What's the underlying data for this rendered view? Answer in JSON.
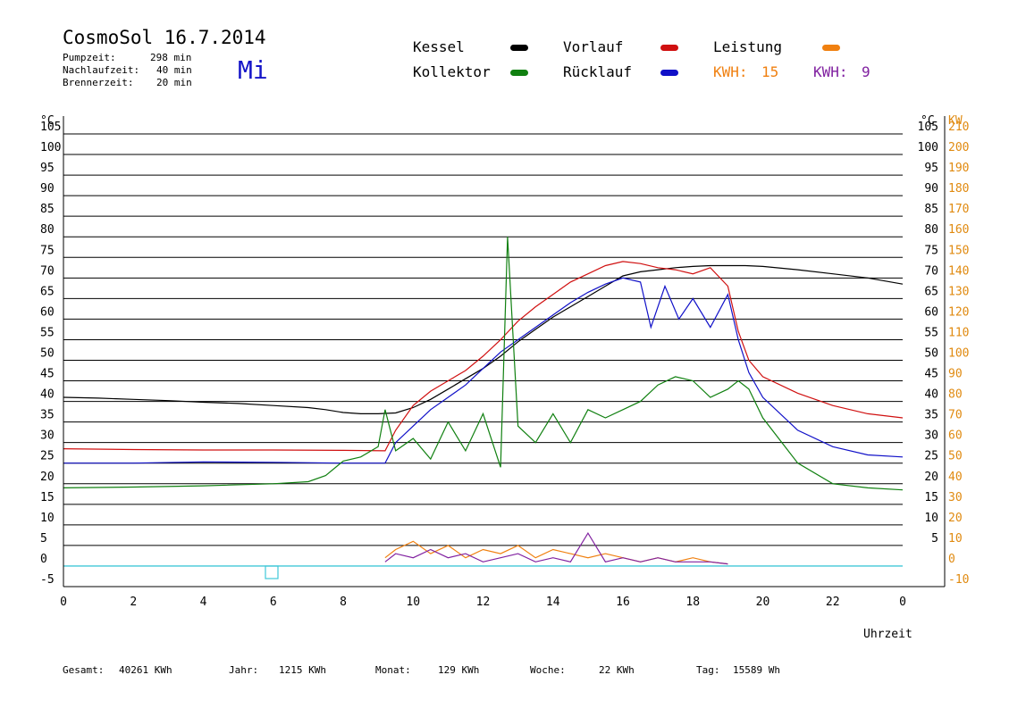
{
  "header": {
    "title": "CosmoSol 16.7.2014",
    "weekday": "Mi",
    "stats": [
      {
        "label": "Pumpzeit:",
        "value": "298 min"
      },
      {
        "label": "Nachlaufzeit:",
        "value": "40 min"
      },
      {
        "label": "Brennerzeit:",
        "value": "20 min"
      }
    ]
  },
  "legend": {
    "kessel": "Kessel",
    "kollektor": "Kollektor",
    "vorlauf": "Vorlauf",
    "ruecklauf": "Rücklauf",
    "leistung": "Leistung",
    "kwh1_label": "KWH:",
    "kwh1_value": "15",
    "kwh2_label": "KWH:",
    "kwh2_value": "9"
  },
  "colors": {
    "kessel": "#000000",
    "vorlauf": "#d01010",
    "ruecklauf": "#1010c8",
    "kollektor": "#108010",
    "leistung": "#f08010",
    "kwh2": "#8020a0",
    "zero_line": "#40c8d8",
    "right_axis": "#e08a10"
  },
  "footer": {
    "gesamt_label": "Gesamt:",
    "gesamt_value": "40261 KWh",
    "jahr_label": "Jahr:",
    "jahr_value": "1215 KWh",
    "monat_label": "Monat:",
    "monat_value": "129 KWh",
    "woche_label": "Woche:",
    "woche_value": "22 KWh",
    "tag_label": "Tag:",
    "tag_value": "15589 Wh"
  },
  "chart_data": {
    "type": "line",
    "xlabel": "Uhrzeit",
    "xlim": [
      0,
      24
    ],
    "x_ticks": [
      "0",
      "2",
      "4",
      "6",
      "8",
      "10",
      "12",
      "14",
      "16",
      "18",
      "20",
      "22",
      "0"
    ],
    "ylabel_left": "°C",
    "ylabel_right_temp": "°C",
    "ylabel_right_power": "KW",
    "ylim": [
      -5,
      105
    ],
    "y_ticks_left": [
      "-5",
      "0",
      "5",
      "10",
      "15",
      "20",
      "25",
      "30",
      "35",
      "40",
      "45",
      "50",
      "55",
      "60",
      "65",
      "70",
      "75",
      "80",
      "85",
      "90",
      "95",
      "100",
      "105"
    ],
    "y_ticks_right": [
      "5",
      "10",
      "15",
      "20",
      "25",
      "30",
      "35",
      "40",
      "45",
      "50",
      "55",
      "60",
      "65",
      "70",
      "75",
      "80",
      "85",
      "90",
      "95",
      "100",
      "105"
    ],
    "y_ticks_power": [
      "-10",
      "0",
      "10",
      "20",
      "30",
      "40",
      "50",
      "60",
      "70",
      "80",
      "90",
      "100",
      "110",
      "120",
      "130",
      "140",
      "150",
      "160",
      "170",
      "180",
      "190",
      "200",
      "210"
    ],
    "grid": true,
    "series": [
      {
        "name": "Kessel",
        "color": "#000000",
        "x": [
          0,
          1,
          2,
          3,
          4,
          5,
          6,
          7,
          7.5,
          8,
          8.5,
          9,
          9.5,
          10,
          10.5,
          11,
          11.5,
          12,
          12.5,
          13,
          13.5,
          14,
          14.5,
          15,
          15.5,
          16,
          16.5,
          17,
          17.5,
          18,
          18.5,
          19,
          19.5,
          20,
          21,
          22,
          23,
          24
        ],
        "y": [
          41,
          40.8,
          40.5,
          40.2,
          39.8,
          39.5,
          39,
          38.5,
          38,
          37.3,
          37,
          37,
          37.2,
          38.5,
          40.5,
          43,
          45.5,
          48,
          51,
          54.5,
          57.5,
          60.5,
          63,
          65.5,
          68,
          70.5,
          71.5,
          72,
          72.5,
          72.8,
          73,
          73,
          73,
          72.8,
          72,
          71,
          70,
          68.5
        ]
      },
      {
        "name": "Vorlauf",
        "color": "#d01010",
        "x": [
          0,
          2,
          4,
          6,
          8,
          9.2,
          9.5,
          10,
          10.5,
          11,
          11.5,
          12,
          12.5,
          13,
          13.5,
          14,
          14.5,
          15,
          15.5,
          16,
          16.5,
          17,
          17.5,
          18,
          18.5,
          19,
          19.3,
          19.6,
          20,
          21,
          22,
          23,
          24
        ],
        "y": [
          28.5,
          28.3,
          28.2,
          28.2,
          28.1,
          28,
          33,
          39,
          42.5,
          45,
          47.5,
          51,
          55,
          59.5,
          63,
          66,
          69,
          71,
          73,
          74,
          73.5,
          72.5,
          72,
          71,
          72.5,
          68,
          57,
          50,
          46,
          42,
          39,
          37,
          36
        ]
      },
      {
        "name": "Rücklauf",
        "color": "#1010c8",
        "x": [
          0,
          2,
          4,
          6,
          8,
          9.2,
          9.5,
          10,
          10.5,
          11,
          11.5,
          12,
          12.5,
          13,
          13.5,
          14,
          14.5,
          15,
          15.5,
          16,
          16.5,
          16.8,
          17.2,
          17.6,
          18,
          18.5,
          19,
          19.3,
          19.6,
          20,
          21,
          22,
          23,
          24
        ],
        "y": [
          25,
          25,
          25.3,
          25.2,
          25,
          25,
          30,
          34,
          38,
          41,
          44,
          48,
          52,
          55,
          58,
          61,
          64,
          66.5,
          68.5,
          70,
          69,
          58,
          68,
          60,
          65,
          58,
          66,
          55,
          47,
          41,
          33,
          29,
          27,
          26.5
        ]
      },
      {
        "name": "Kollektor",
        "color": "#108010",
        "x": [
          0,
          2,
          4,
          6,
          7,
          7.5,
          8,
          8.5,
          9,
          9.2,
          9.5,
          10,
          10.5,
          11,
          11.5,
          12,
          12.5,
          12.7,
          13,
          13.5,
          14,
          14.5,
          15,
          15.5,
          16,
          16.5,
          17,
          17.5,
          18,
          18.5,
          19,
          19.3,
          19.6,
          20,
          21,
          22,
          23,
          24
        ],
        "y": [
          19,
          19.2,
          19.5,
          20,
          20.5,
          22,
          25.5,
          26.5,
          29,
          38,
          28,
          31,
          26,
          35,
          28,
          37,
          24,
          80,
          34,
          30,
          37,
          30,
          38,
          36,
          38,
          40,
          44,
          46,
          45,
          41,
          43,
          45,
          43,
          36,
          25,
          20,
          19,
          18.5
        ]
      },
      {
        "name": "Leistung",
        "color": "#f08010",
        "x": [
          9.2,
          9.5,
          10,
          10.5,
          11,
          11.5,
          12,
          12.5,
          13,
          13.5,
          14,
          14.5,
          15,
          15.5,
          16,
          16.5,
          17,
          17.5,
          18,
          18.5,
          19
        ],
        "y": [
          2,
          4,
          6,
          3,
          5,
          2,
          4,
          3,
          5,
          2,
          4,
          3,
          2,
          3,
          2,
          1,
          2,
          1,
          2,
          1,
          0.5
        ]
      },
      {
        "name": "KWH",
        "color": "#8020a0",
        "x": [
          9.2,
          9.5,
          10,
          10.5,
          11,
          11.5,
          12,
          12.5,
          13,
          13.5,
          14,
          14.5,
          15,
          15.5,
          16,
          16.5,
          17,
          17.5,
          18,
          18.5,
          19
        ],
        "y": [
          1,
          3,
          2,
          4,
          2,
          3,
          1,
          2,
          3,
          1,
          2,
          1,
          8,
          1,
          2,
          1,
          2,
          1,
          1,
          1,
          0.5
        ]
      }
    ]
  }
}
